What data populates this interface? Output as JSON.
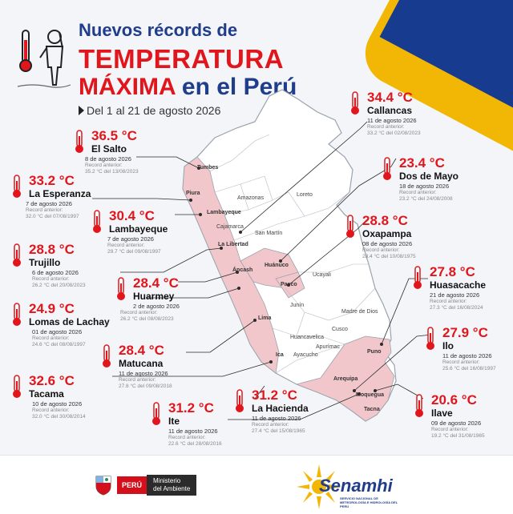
{
  "header": {
    "title_line1": "Nuevos récords de",
    "title_line2": "TEMPERATURA",
    "title_line3_red": "MÁXIMA",
    "title_line3_blue": " en el Perú",
    "period": "Del 1 al 21 de agosto 2026"
  },
  "prev_label": "Record anterior:",
  "map_regions": [
    "Tumbes",
    "Piura",
    "Lambayeque",
    "Cajamarca",
    "La Libertad",
    "San Martín",
    "Áncash",
    "Huánuco",
    "Pasco",
    "Lima",
    "Junín",
    "Ica",
    "Ayacucho",
    "Huancavelica",
    "Apurímac",
    "Cusco",
    "Madre de Dios",
    "Ucayali",
    "Puno",
    "Arequipa",
    "Moquegua",
    "Tacna",
    "Amazonas",
    "Loreto"
  ],
  "records": [
    {
      "temp": "36.5 °C",
      "place": "El Salto",
      "date": "8 de agosto 2026",
      "prev": "35.2 °C del 13/08/2023"
    },
    {
      "temp": "33.2 °C",
      "place": "La Esperanza",
      "date": "7 de agosto 2026",
      "prev": "32.0 °C del 07/08/1997"
    },
    {
      "temp": "30.4 °C",
      "place": "Lambayeque",
      "date": "7 de agosto 2026",
      "prev": "29.7 °C del 09/08/1997"
    },
    {
      "temp": "28.8 °C",
      "place": "Trujillo",
      "date": "6 de agosto 2026",
      "prev": "26.2 °C del 20/08/2023"
    },
    {
      "temp": "28.4 °C",
      "place": "Huarmey",
      "date": "2 de agosto 2026",
      "prev": "26.2 °C del 08/08/2023"
    },
    {
      "temp": "24.9 °C",
      "place": "Lomas de Lachay",
      "date": "01 de agosto 2026",
      "prev": "24.6 °C del 08/08/1997"
    },
    {
      "temp": "28.4 °C",
      "place": "Matucana",
      "date": "11 de agosto 2026",
      "prev": "27.8 °C del 09/08/2018"
    },
    {
      "temp": "32.6 °C",
      "place": "Tacama",
      "date": "10 de agosto 2026",
      "prev": "32.0 °C del 30/08/2014"
    },
    {
      "temp": "31.2 °C",
      "place": "Ite",
      "date": "11 de agosto 2026",
      "prev": "22.6 °C del 28/08/2016"
    },
    {
      "temp": "31.2 °C",
      "place": "La Hacienda",
      "date": "11 de agosto 2026",
      "prev": "27.4 °C del 15/08/1965"
    },
    {
      "temp": "34.4 °C",
      "place": "Callancas",
      "date": "11 de agosto 2026",
      "prev": "33.2 °C del 02/08/2023"
    },
    {
      "temp": "23.4 °C",
      "place": "Dos de Mayo",
      "date": "18 de agosto 2026",
      "prev": "23.2 °C del 24/08/2008"
    },
    {
      "temp": "28.8 °C",
      "place": "Oxapampa",
      "date": "08 de agosto 2026",
      "prev": "28.4 °C del 10/08/1975"
    },
    {
      "temp": "27.8 °C",
      "place": "Huasacache",
      "date": "21 de agosto 2026",
      "prev": "27.3 °C del 16/08/2024"
    },
    {
      "temp": "27.9 °C",
      "place": "Ilo",
      "date": "11 de agosto 2026",
      "prev": "25.6 °C del 16/08/1997"
    },
    {
      "temp": "20.6 °C",
      "place": "Ilave",
      "date": "09 de agosto 2026",
      "prev": "19.2 °C del 31/08/1965"
    }
  ],
  "footer": {
    "peru": "PERÚ",
    "ministry_line1": "Ministerio",
    "ministry_line2": "del Ambiente",
    "senamhi": "Senamhi",
    "senamhi_sub": "SERVICIO NACIONAL DE METEOROLOGÍA E HIDROLOGÍA DEL PERÚ"
  },
  "colors": {
    "accent_red": "#e0161c",
    "brand_blue": "#1f3d8a",
    "brand_yellow": "#f2b705",
    "map_highlight": "#f2c7cb"
  }
}
